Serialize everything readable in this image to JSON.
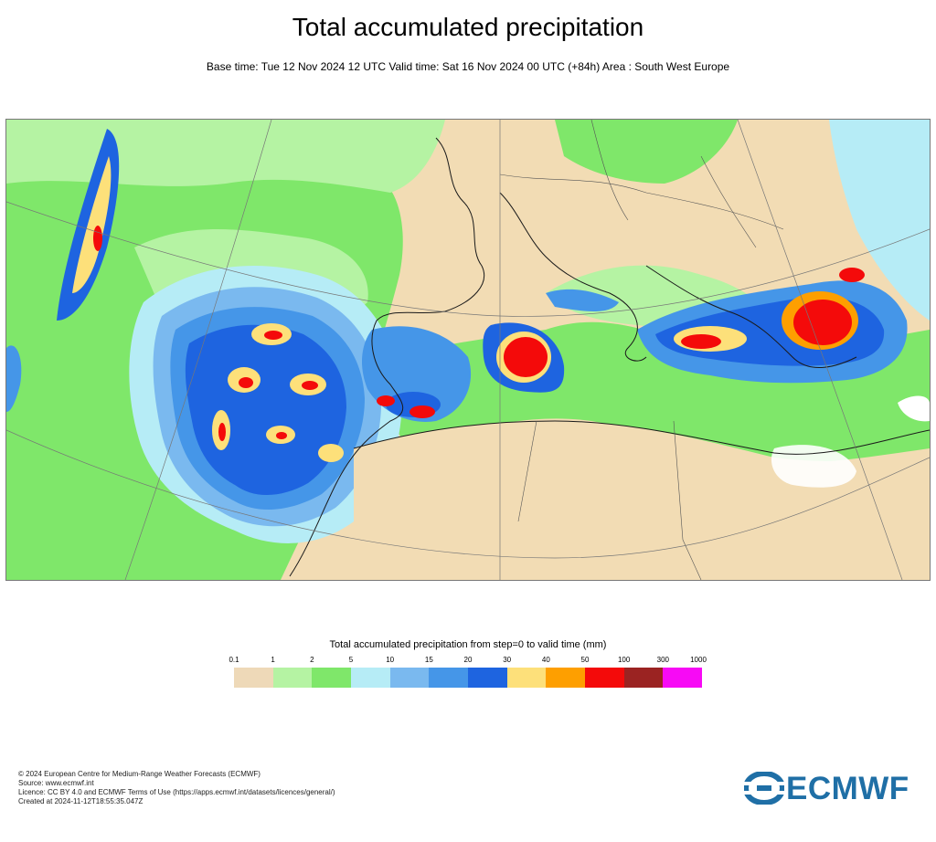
{
  "header": {
    "title": "Total accumulated precipitation",
    "subtitle": "Base time: Tue 12 Nov 2024 12 UTC Valid time: Sat 16 Nov 2024 00 UTC (+84h) Area : South West Europe"
  },
  "legend": {
    "title": "Total accumulated precipitation from step=0 to valid time (mm)",
    "ticks": [
      "0.1",
      "1",
      "2",
      "5",
      "10",
      "15",
      "20",
      "30",
      "40",
      "50",
      "100",
      "300",
      "1000"
    ],
    "colors": [
      "#eed9b8",
      "#b5f3a3",
      "#7fe76a",
      "#b6ecf6",
      "#7ab9ef",
      "#4596e8",
      "#1e64e0",
      "#fde07a",
      "#fe9f00",
      "#f40a0a",
      "#9b2322",
      "#f70af5"
    ]
  },
  "map": {
    "land_color": "#f2dcb4",
    "sea_color": "#7fe76a"
  },
  "footer": {
    "lines": [
      "© 2024 European Centre for Medium-Range Weather Forecasts (ECMWF)",
      "Source: www.ecmwf.int",
      "Licence: CC BY 4.0 and ECMWF Terms of Use (https://apps.ecmwf.int/datasets/licences/general/)",
      "Created at 2024-11-12T18:55:35.047Z"
    ]
  },
  "logo": {
    "text": "ECMWF",
    "color": "#1f6fa6"
  }
}
